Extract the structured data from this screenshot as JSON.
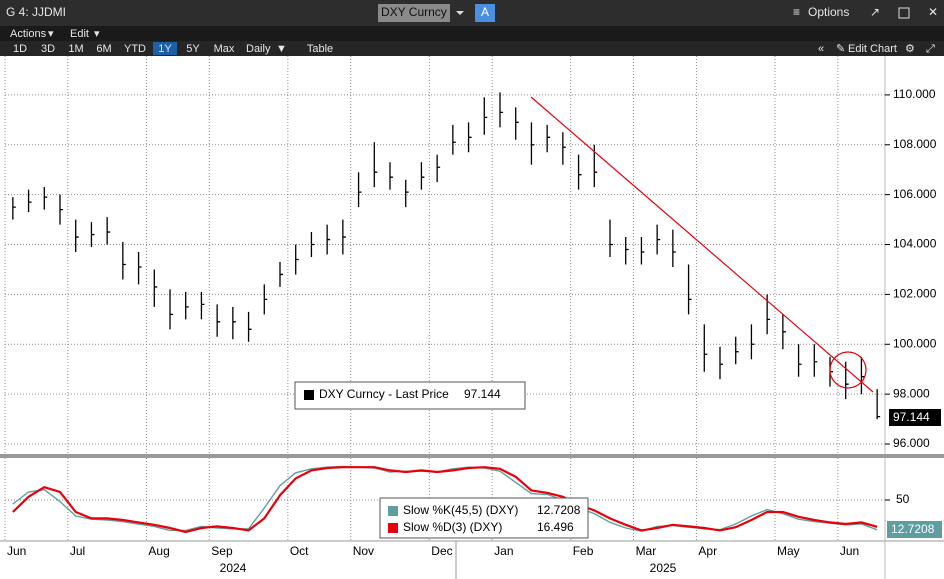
{
  "toolbar": {
    "title": "G 4: JJDMI",
    "security": "DXY Curncy",
    "security_button": "A",
    "options": "Options",
    "menus": [
      "Actions",
      "Edit"
    ],
    "ranges": [
      "1D",
      "3D",
      "1M",
      "6M",
      "YTD",
      "1Y",
      "5Y",
      "Max"
    ],
    "frequency": "Daily",
    "table": "Table",
    "edit_chart": "Edit Chart"
  },
  "chart_data": [
    {
      "type": "ohlc",
      "ylim": [
        95.6,
        111.6
      ],
      "yticks": [
        {
          "value": 96,
          "label": "96.000"
        },
        {
          "value": 98,
          "label": "98.000"
        },
        {
          "value": 100,
          "label": "100.000"
        },
        {
          "value": 102,
          "label": "102.000"
        },
        {
          "value": 104,
          "label": "104.000"
        },
        {
          "value": 106,
          "label": "106.000"
        },
        {
          "value": 108,
          "label": "108.000"
        },
        {
          "value": 110,
          "label": "110.000"
        }
      ],
      "grid": true,
      "series": [
        {
          "name": "DXY Curncy - Last Price",
          "color": "#000000",
          "last_value": 97.144,
          "high": [
            105.9,
            106.2,
            106.3,
            106.0,
            105.0,
            104.9,
            105.1,
            104.1,
            103.7,
            103.0,
            102.2,
            102.1,
            102.1,
            101.6,
            101.5,
            101.3,
            102.4,
            103.3,
            104.0,
            104.5,
            104.8,
            105.0,
            106.9,
            108.1,
            107.3,
            106.6,
            107.3,
            107.6,
            108.8,
            108.9,
            109.9,
            110.1,
            109.5,
            108.9,
            108.8,
            108.5,
            107.6,
            108.0,
            105.0,
            104.3,
            104.3,
            104.8,
            104.6,
            103.2,
            100.8,
            99.9,
            100.3,
            100.8,
            102.0,
            101.2,
            100.0,
            100.0,
            99.5,
            99.3,
            99.5,
            98.2
          ],
          "low": [
            105.0,
            105.3,
            105.4,
            104.8,
            103.7,
            103.9,
            104.0,
            102.6,
            102.4,
            101.5,
            100.6,
            101.0,
            101.0,
            100.3,
            100.2,
            100.1,
            101.2,
            102.3,
            102.8,
            103.5,
            103.6,
            103.6,
            105.5,
            106.3,
            106.2,
            105.5,
            106.2,
            106.5,
            107.6,
            107.7,
            108.4,
            108.7,
            108.2,
            107.2,
            107.7,
            107.2,
            106.2,
            106.3,
            103.5,
            103.2,
            103.2,
            103.6,
            103.1,
            101.2,
            98.9,
            98.6,
            99.2,
            99.4,
            100.4,
            99.8,
            98.7,
            98.7,
            98.3,
            97.8,
            98.0,
            97.0
          ],
          "values": [
            105.5,
            105.7,
            105.9,
            105.4,
            104.3,
            104.4,
            104.5,
            103.2,
            103.1,
            102.3,
            101.2,
            101.5,
            101.6,
            100.9,
            100.9,
            100.6,
            101.8,
            102.8,
            103.4,
            104.0,
            104.2,
            104.3,
            106.1,
            106.9,
            106.7,
            106.1,
            106.7,
            107.1,
            108.1,
            108.3,
            109.1,
            109.3,
            108.9,
            108.0,
            108.3,
            107.9,
            106.8,
            106.9,
            104.0,
            103.8,
            103.7,
            104.2,
            103.7,
            101.8,
            99.6,
            99.2,
            99.7,
            100.0,
            101.0,
            100.5,
            99.2,
            99.3,
            98.9,
            98.4,
            98.7,
            97.1
          ]
        }
      ]
    },
    {
      "type": "line",
      "ylim": [
        0,
        100
      ],
      "yticks": [
        50
      ],
      "grid": true,
      "categories": [
        "Jun",
        null,
        null,
        null,
        "Jul",
        null,
        null,
        null,
        null,
        "Aug",
        null,
        null,
        null,
        "Sep",
        null,
        null,
        null,
        null,
        "Oct",
        null,
        null,
        null,
        "Nov",
        null,
        null,
        null,
        null,
        "Dec",
        null,
        null,
        null,
        "Jan",
        null,
        null,
        null,
        null,
        "Feb",
        null,
        null,
        null,
        "Mar",
        null,
        null,
        null,
        "Apr",
        null,
        null,
        null,
        null,
        "May",
        null,
        null,
        null,
        "Jun",
        null,
        null
      ],
      "years": [
        "2024",
        "2025"
      ],
      "series": [
        {
          "name": "Slow %K(45,5) (DXY)",
          "color": "#5f9ea0",
          "values": [
            45,
            60,
            63,
            48,
            30,
            26,
            25,
            23,
            20,
            17,
            12,
            12,
            17,
            15,
            14,
            14,
            40,
            68,
            84,
            89,
            91,
            92,
            91,
            90,
            85,
            86,
            86,
            85,
            89,
            91,
            90,
            86,
            72,
            58,
            57,
            50,
            40,
            33,
            22,
            15,
            11,
            17,
            18,
            16,
            14,
            13,
            20,
            30,
            38,
            33,
            26,
            23,
            21,
            19,
            20,
            12.7208
          ]
        },
        {
          "name": "Slow %D(3) (DXY)",
          "color": "#e8000b",
          "values": [
            35,
            54,
            66,
            60,
            35,
            27,
            27,
            25,
            22,
            19,
            15,
            10,
            15,
            17,
            15,
            12,
            27,
            56,
            77,
            87,
            90,
            91,
            91,
            91,
            87,
            85,
            87,
            85,
            87,
            90,
            91,
            89,
            79,
            62,
            59,
            54,
            44,
            37,
            27,
            19,
            12,
            15,
            19,
            17,
            15,
            12,
            16,
            25,
            35,
            35,
            29,
            25,
            22,
            20,
            22,
            16.496
          ]
        }
      ]
    }
  ]
}
